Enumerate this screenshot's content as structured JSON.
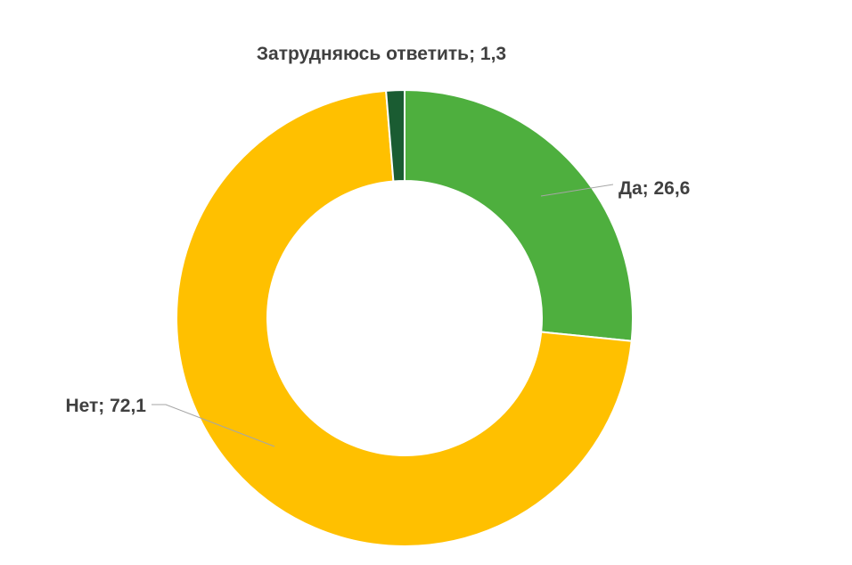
{
  "chart_data": {
    "type": "pie",
    "variant": "donut",
    "categories": [
      "Да",
      "Нет",
      "Затрудняюсь ответить"
    ],
    "values": [
      26.6,
      72.1,
      1.3
    ],
    "colors": [
      "#4eaf3e",
      "#ffc000",
      "#1a5c32"
    ],
    "data_labels": [
      "Да; 26,6",
      "Нет; 72,1",
      "Затрудняюсь ответить; 1,3"
    ],
    "legend": "none"
  }
}
